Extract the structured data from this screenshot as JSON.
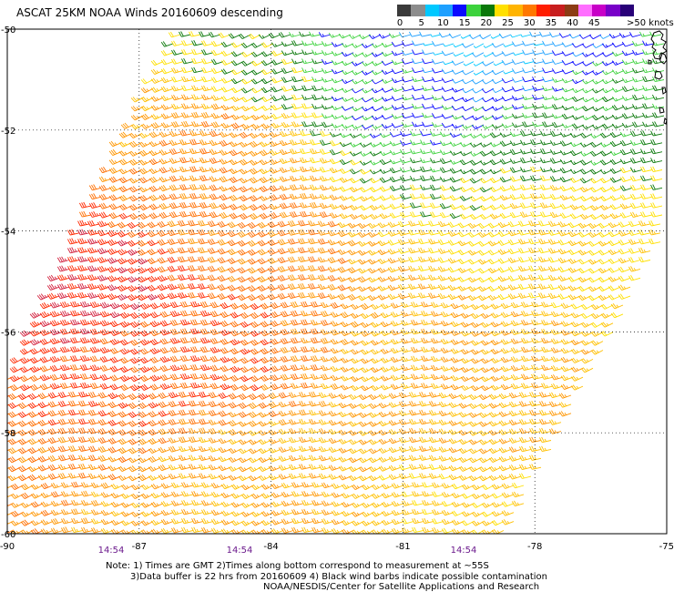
{
  "title": "ASCAT 25KM NOAA Winds 20160609 descending",
  "colorbar": {
    "labels": [
      "0",
      "5",
      "10",
      "15",
      "20",
      "25",
      "30",
      "35",
      "40",
      "45",
      ">50 knots"
    ],
    "colors": [
      "#3a3a3a",
      "#8c8c8c",
      "#00c8ff",
      "#1ea0ff",
      "#0a0aff",
      "#3cd23c",
      "#0a780a",
      "#ffe000",
      "#ffb400",
      "#ff7800",
      "#ff1e00",
      "#c81e1e",
      "#8c3c14",
      "#ff6eff",
      "#c800c8",
      "#7800c8",
      "#280078"
    ]
  },
  "axes": {
    "lat_labels": [
      "-50",
      "-52",
      "-54",
      "-56",
      "-58",
      "-60"
    ],
    "lon_labels": [
      "-90",
      "-87",
      "-84",
      "-81",
      "-78",
      "-75"
    ]
  },
  "times": [
    "14:54",
    "14:54",
    "14:54"
  ],
  "notes": {
    "line1": "Note: 1) Times are GMT 2)Times along bottom correspond to measurement at ~55S",
    "line2": "3)Data buffer is 22 hrs from 20160609 4) Black wind barbs indicate possible contamination",
    "line3": "NOAA/NESDIS/Center for Satellite Applications and Research"
  },
  "chart_data": {
    "type": "wind_barb_map",
    "title": "ASCAT 25KM NOAA Winds 20160609 descending",
    "lon_range": [
      -90,
      -75
    ],
    "lat_range": [
      -60,
      -50
    ],
    "lon_ticks": [
      -90,
      -87,
      -84,
      -81,
      -78,
      -75
    ],
    "lat_ticks": [
      -50,
      -52,
      -54,
      -56,
      -58,
      -60
    ],
    "grid": true,
    "speed_legend_knots": [
      0,
      5,
      10,
      15,
      20,
      25,
      30,
      35,
      40,
      45,
      50
    ],
    "swath_corners": [
      [
        -86.2,
        -50
      ],
      [
        -75,
        -50
      ],
      [
        -75,
        -54
      ],
      [
        -78.6,
        -60
      ],
      [
        -90,
        -60
      ],
      [
        -90,
        -57
      ]
    ],
    "wind_regions": [
      {
        "lat": -50.3,
        "lon": -79.5,
        "speed_knots": 10
      },
      {
        "lat": -50.5,
        "lon": -82,
        "speed_knots": 17
      },
      {
        "lat": -51.2,
        "lon": -81,
        "speed_knots": 15
      },
      {
        "lat": -51.0,
        "lon": -84,
        "speed_knots": 22
      },
      {
        "lat": -52.5,
        "lon": -77,
        "speed_knots": 20
      },
      {
        "lat": -53.5,
        "lon": -77,
        "speed_knots": 25
      },
      {
        "lat": -52.0,
        "lon": -85,
        "speed_knots": 30
      },
      {
        "lat": -54.0,
        "lon": -85,
        "speed_knots": 32
      },
      {
        "lat": -55.0,
        "lon": -88,
        "speed_knots": 37
      },
      {
        "lat": -56.5,
        "lon": -86,
        "speed_knots": 34
      },
      {
        "lat": -57.0,
        "lon": -80,
        "speed_knots": 28
      },
      {
        "lat": -59.0,
        "lon": -84,
        "speed_knots": 28
      },
      {
        "lat": -59.5,
        "lon": -80,
        "speed_knots": 26
      }
    ],
    "prevailing_direction": "westerly"
  }
}
